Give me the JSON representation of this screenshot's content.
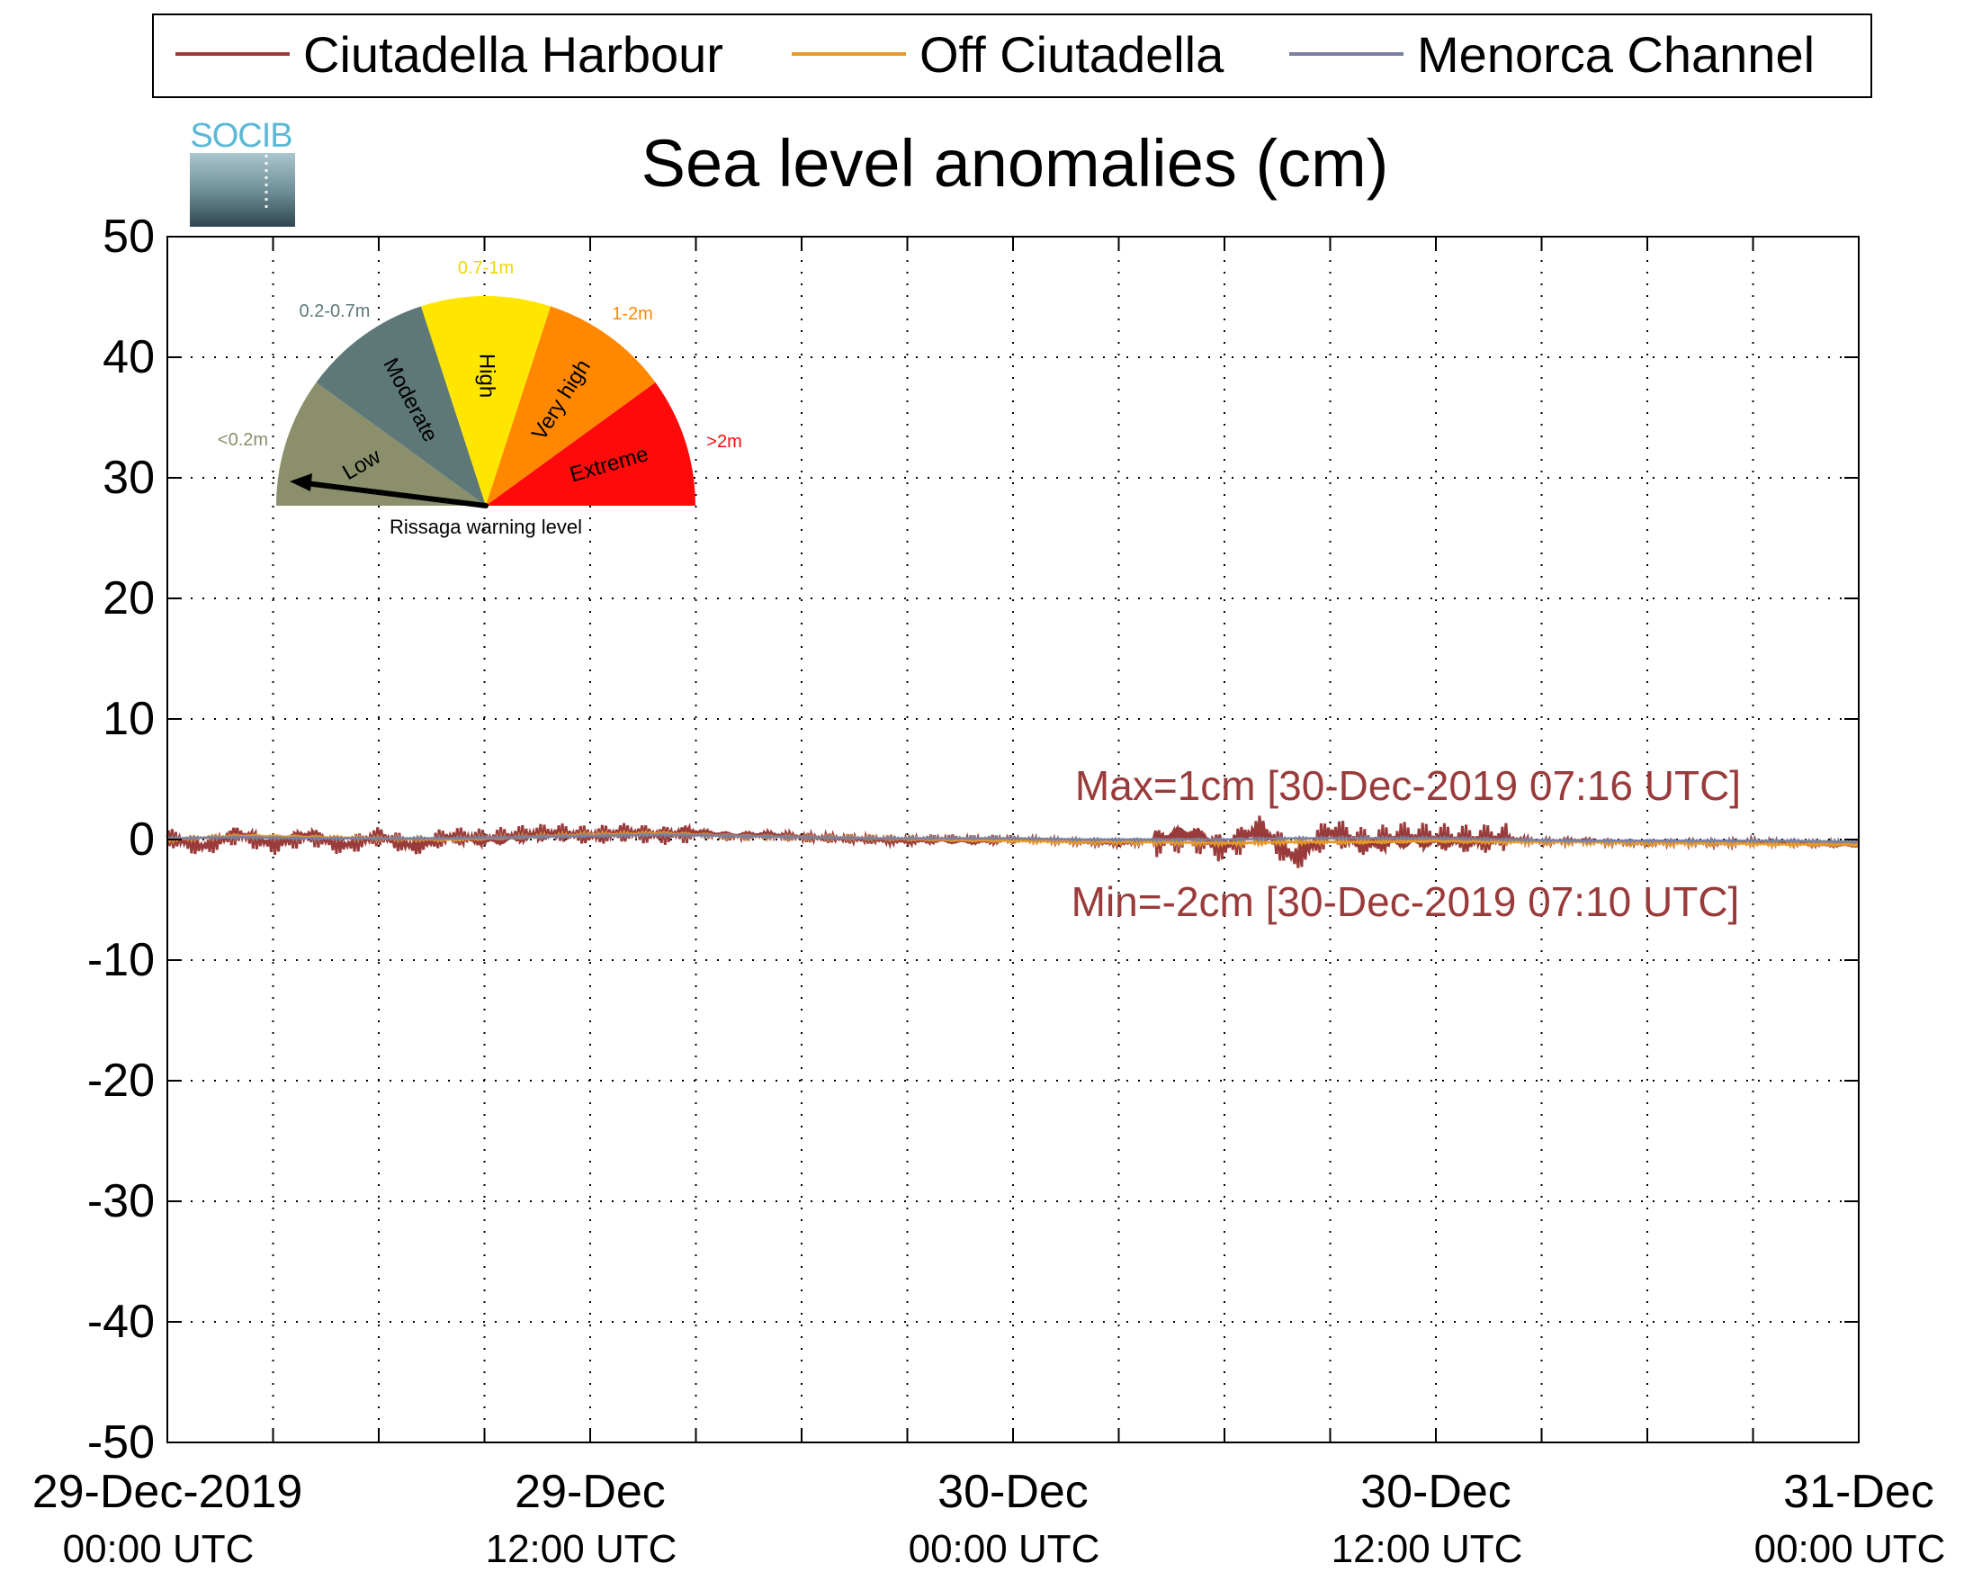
{
  "chart_data": {
    "type": "line",
    "title": "Sea level anomalies (cm)",
    "xlabel": "",
    "ylabel": "",
    "ylim": [
      -50,
      50
    ],
    "xlim": [
      "2019-12-29 00:00",
      "2019-12-31 00:00"
    ],
    "yticks": [
      50,
      40,
      30,
      20,
      10,
      0,
      -10,
      -20,
      -30,
      -40,
      -50
    ],
    "yticks_labels": [
      "50",
      "40",
      "30",
      "20",
      "10",
      "0",
      "-10",
      "-20",
      "-30",
      "-40",
      "-50"
    ],
    "xticks": [
      {
        "date": "2019-12-29 00:00",
        "line1": "29-Dec-2019",
        "line2": "00:00 UTC"
      },
      {
        "date": "2019-12-29 12:00",
        "line1": "29-Dec",
        "line2": "12:00 UTC"
      },
      {
        "date": "2019-12-30 00:00",
        "line1": "30-Dec",
        "line2": "00:00 UTC"
      },
      {
        "date": "2019-12-30 12:00",
        "line1": "30-Dec",
        "line2": "12:00 UTC"
      },
      {
        "date": "2019-12-31 00:00",
        "line1": "31-Dec",
        "line2": "00:00 UTC"
      }
    ],
    "grid": true,
    "legend_position": "top",
    "series": [
      {
        "name": "Ciutadella Harbour",
        "color": "#9a3b3b",
        "x": [
          "2019-12-29 00:00",
          "2019-12-29 01:00",
          "2019-12-29 02:00",
          "2019-12-29 03:00",
          "2019-12-29 04:00",
          "2019-12-29 05:00",
          "2019-12-29 06:00",
          "2019-12-29 07:00",
          "2019-12-29 08:00",
          "2019-12-29 09:00",
          "2019-12-29 10:00",
          "2019-12-29 11:00",
          "2019-12-29 12:00",
          "2019-12-29 13:00",
          "2019-12-29 14:00",
          "2019-12-29 15:00",
          "2019-12-29 16:00",
          "2019-12-29 17:00",
          "2019-12-29 18:00",
          "2019-12-29 19:00",
          "2019-12-29 20:00",
          "2019-12-29 21:00",
          "2019-12-29 22:00",
          "2019-12-29 23:00",
          "2019-12-30 00:00",
          "2019-12-30 01:00",
          "2019-12-30 02:00",
          "2019-12-30 03:00",
          "2019-12-30 04:00",
          "2019-12-30 05:00",
          "2019-12-30 06:00",
          "2019-12-30 07:00",
          "2019-12-30 08:00",
          "2019-12-30 09:00",
          "2019-12-30 10:00",
          "2019-12-30 11:00",
          "2019-12-30 12:00",
          "2019-12-30 13:00",
          "2019-12-30 14:00",
          "2019-12-30 15:00",
          "2019-12-30 16:00",
          "2019-12-30 17:00",
          "2019-12-30 18:00",
          "2019-12-30 19:00",
          "2019-12-30 20:00",
          "2019-12-30 21:00",
          "2019-12-30 22:00",
          "2019-12-30 23:00",
          "2019-12-31 00:00"
        ],
        "y": [
          0.2,
          -0.6,
          0.5,
          -0.4,
          0.4,
          -0.5,
          0.3,
          -0.6,
          0.2,
          0.0,
          0.3,
          0.5,
          0.3,
          0.6,
          0.4,
          0.6,
          0.3,
          0.4,
          0.2,
          0.1,
          0.0,
          -0.1,
          0.0,
          -0.1,
          0.0,
          -0.1,
          -0.2,
          -0.3,
          -0.1,
          0.4,
          -0.6,
          0.9,
          -1.5,
          0.6,
          -0.4,
          0.1,
          0.0,
          -0.1,
          0.1,
          -0.2,
          -0.1,
          -0.2,
          -0.3,
          -0.2,
          -0.3,
          -0.2,
          -0.3,
          -0.4,
          -0.4
        ]
      },
      {
        "name": "Off Ciutadella",
        "color": "#e69a2a",
        "x": [
          "2019-12-29 00:00",
          "2019-12-29 02:00",
          "2019-12-29 04:00",
          "2019-12-29 06:00",
          "2019-12-29 08:00",
          "2019-12-29 10:00",
          "2019-12-29 12:00",
          "2019-12-29 14:00",
          "2019-12-29 16:00",
          "2019-12-29 18:00",
          "2019-12-29 20:00",
          "2019-12-29 22:00",
          "2019-12-30 00:00",
          "2019-12-30 02:00",
          "2019-12-30 04:00",
          "2019-12-30 06:00",
          "2019-12-30 08:00",
          "2019-12-30 10:00",
          "2019-12-30 12:00",
          "2019-12-30 14:00",
          "2019-12-30 16:00",
          "2019-12-30 18:00",
          "2019-12-30 20:00",
          "2019-12-30 22:00",
          "2019-12-31 00:00"
        ],
        "y": [
          0.0,
          0.3,
          0.2,
          0.1,
          0.0,
          0.2,
          0.4,
          0.5,
          0.3,
          0.2,
          0.1,
          0.0,
          -0.1,
          -0.2,
          -0.2,
          -0.3,
          -0.2,
          -0.2,
          -0.1,
          -0.2,
          -0.2,
          -0.3,
          -0.3,
          -0.4,
          -0.4
        ]
      },
      {
        "name": "Menorca Channel",
        "color": "#7a80a0",
        "x": [
          "2019-12-29 00:00",
          "2019-12-29 02:00",
          "2019-12-29 04:00",
          "2019-12-29 06:00",
          "2019-12-29 08:00",
          "2019-12-29 10:00",
          "2019-12-29 12:00",
          "2019-12-29 14:00",
          "2019-12-29 16:00",
          "2019-12-29 18:00",
          "2019-12-29 20:00",
          "2019-12-29 22:00",
          "2019-12-30 00:00",
          "2019-12-30 02:00",
          "2019-12-30 04:00",
          "2019-12-30 06:00",
          "2019-12-30 08:00",
          "2019-12-30 10:00",
          "2019-12-30 12:00",
          "2019-12-30 14:00",
          "2019-12-30 16:00",
          "2019-12-30 18:00",
          "2019-12-30 20:00",
          "2019-12-30 22:00",
          "2019-12-31 00:00"
        ],
        "y": [
          0.1,
          0.2,
          0.1,
          0.1,
          0.1,
          0.2,
          0.3,
          0.4,
          0.3,
          0.2,
          0.1,
          0.1,
          0.1,
          0.0,
          0.0,
          0.0,
          0.1,
          0.1,
          0.1,
          0.0,
          -0.1,
          -0.1,
          -0.1,
          -0.1,
          -0.2
        ]
      }
    ],
    "annotations": [
      {
        "text": "Max=1cm [30-Dec-2019 07:16 UTC]",
        "color": "#9a3b3b"
      },
      {
        "text": "Min=-2cm [30-Dec-2019 07:10 UTC]",
        "color": "#9a3b3b"
      }
    ]
  },
  "logo": {
    "text": "SOCIB"
  },
  "gauge": {
    "caption": "Rissaga warning level",
    "needle_segment": "Low",
    "segments": [
      {
        "name": "Low",
        "range": "<0.2m",
        "color": "#8b8f6b",
        "range_color": "#8b8f6b"
      },
      {
        "name": "Moderate",
        "range": "0.2-0.7m",
        "color": "#5e7878",
        "range_color": "#5e7878"
      },
      {
        "name": "High",
        "range": "0.7-1m",
        "color": "#ffe600",
        "range_color": "#f2d600"
      },
      {
        "name": "Very high",
        "range": "1-2m",
        "color": "#ff8800",
        "range_color": "#ff8800"
      },
      {
        "name": "Extreme",
        "range": ">2m",
        "color": "#ff0a0a",
        "range_color": "#ff0a0a"
      }
    ]
  }
}
